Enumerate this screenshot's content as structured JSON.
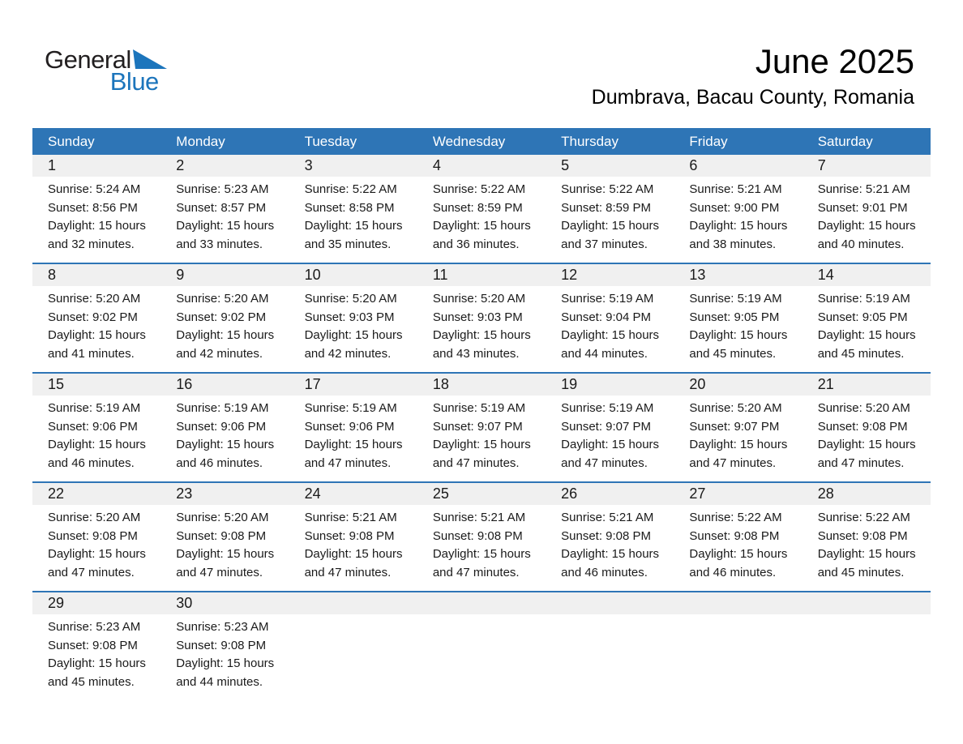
{
  "logo": {
    "general": "General",
    "blue": "Blue"
  },
  "header": {
    "title": "June 2025",
    "subtitle": "Dumbrava, Bacau County, Romania"
  },
  "colors": {
    "header_bg": "#2e75b6",
    "divider": "#2e75b6",
    "band_bg": "#f0f0f0",
    "logo_blue": "#1c75bc",
    "text": "#1a1a1a"
  },
  "weekdays": [
    "Sunday",
    "Monday",
    "Tuesday",
    "Wednesday",
    "Thursday",
    "Friday",
    "Saturday"
  ],
  "weeks": [
    [
      {
        "num": "1",
        "lines": [
          "Sunrise: 5:24 AM",
          "Sunset: 8:56 PM",
          "Daylight: 15 hours",
          "and 32 minutes."
        ]
      },
      {
        "num": "2",
        "lines": [
          "Sunrise: 5:23 AM",
          "Sunset: 8:57 PM",
          "Daylight: 15 hours",
          "and 33 minutes."
        ]
      },
      {
        "num": "3",
        "lines": [
          "Sunrise: 5:22 AM",
          "Sunset: 8:58 PM",
          "Daylight: 15 hours",
          "and 35 minutes."
        ]
      },
      {
        "num": "4",
        "lines": [
          "Sunrise: 5:22 AM",
          "Sunset: 8:59 PM",
          "Daylight: 15 hours",
          "and 36 minutes."
        ]
      },
      {
        "num": "5",
        "lines": [
          "Sunrise: 5:22 AM",
          "Sunset: 8:59 PM",
          "Daylight: 15 hours",
          "and 37 minutes."
        ]
      },
      {
        "num": "6",
        "lines": [
          "Sunrise: 5:21 AM",
          "Sunset: 9:00 PM",
          "Daylight: 15 hours",
          "and 38 minutes."
        ]
      },
      {
        "num": "7",
        "lines": [
          "Sunrise: 5:21 AM",
          "Sunset: 9:01 PM",
          "Daylight: 15 hours",
          "and 40 minutes."
        ]
      }
    ],
    [
      {
        "num": "8",
        "lines": [
          "Sunrise: 5:20 AM",
          "Sunset: 9:02 PM",
          "Daylight: 15 hours",
          "and 41 minutes."
        ]
      },
      {
        "num": "9",
        "lines": [
          "Sunrise: 5:20 AM",
          "Sunset: 9:02 PM",
          "Daylight: 15 hours",
          "and 42 minutes."
        ]
      },
      {
        "num": "10",
        "lines": [
          "Sunrise: 5:20 AM",
          "Sunset: 9:03 PM",
          "Daylight: 15 hours",
          "and 42 minutes."
        ]
      },
      {
        "num": "11",
        "lines": [
          "Sunrise: 5:20 AM",
          "Sunset: 9:03 PM",
          "Daylight: 15 hours",
          "and 43 minutes."
        ]
      },
      {
        "num": "12",
        "lines": [
          "Sunrise: 5:19 AM",
          "Sunset: 9:04 PM",
          "Daylight: 15 hours",
          "and 44 minutes."
        ]
      },
      {
        "num": "13",
        "lines": [
          "Sunrise: 5:19 AM",
          "Sunset: 9:05 PM",
          "Daylight: 15 hours",
          "and 45 minutes."
        ]
      },
      {
        "num": "14",
        "lines": [
          "Sunrise: 5:19 AM",
          "Sunset: 9:05 PM",
          "Daylight: 15 hours",
          "and 45 minutes."
        ]
      }
    ],
    [
      {
        "num": "15",
        "lines": [
          "Sunrise: 5:19 AM",
          "Sunset: 9:06 PM",
          "Daylight: 15 hours",
          "and 46 minutes."
        ]
      },
      {
        "num": "16",
        "lines": [
          "Sunrise: 5:19 AM",
          "Sunset: 9:06 PM",
          "Daylight: 15 hours",
          "and 46 minutes."
        ]
      },
      {
        "num": "17",
        "lines": [
          "Sunrise: 5:19 AM",
          "Sunset: 9:06 PM",
          "Daylight: 15 hours",
          "and 47 minutes."
        ]
      },
      {
        "num": "18",
        "lines": [
          "Sunrise: 5:19 AM",
          "Sunset: 9:07 PM",
          "Daylight: 15 hours",
          "and 47 minutes."
        ]
      },
      {
        "num": "19",
        "lines": [
          "Sunrise: 5:19 AM",
          "Sunset: 9:07 PM",
          "Daylight: 15 hours",
          "and 47 minutes."
        ]
      },
      {
        "num": "20",
        "lines": [
          "Sunrise: 5:20 AM",
          "Sunset: 9:07 PM",
          "Daylight: 15 hours",
          "and 47 minutes."
        ]
      },
      {
        "num": "21",
        "lines": [
          "Sunrise: 5:20 AM",
          "Sunset: 9:08 PM",
          "Daylight: 15 hours",
          "and 47 minutes."
        ]
      }
    ],
    [
      {
        "num": "22",
        "lines": [
          "Sunrise: 5:20 AM",
          "Sunset: 9:08 PM",
          "Daylight: 15 hours",
          "and 47 minutes."
        ]
      },
      {
        "num": "23",
        "lines": [
          "Sunrise: 5:20 AM",
          "Sunset: 9:08 PM",
          "Daylight: 15 hours",
          "and 47 minutes."
        ]
      },
      {
        "num": "24",
        "lines": [
          "Sunrise: 5:21 AM",
          "Sunset: 9:08 PM",
          "Daylight: 15 hours",
          "and 47 minutes."
        ]
      },
      {
        "num": "25",
        "lines": [
          "Sunrise: 5:21 AM",
          "Sunset: 9:08 PM",
          "Daylight: 15 hours",
          "and 47 minutes."
        ]
      },
      {
        "num": "26",
        "lines": [
          "Sunrise: 5:21 AM",
          "Sunset: 9:08 PM",
          "Daylight: 15 hours",
          "and 46 minutes."
        ]
      },
      {
        "num": "27",
        "lines": [
          "Sunrise: 5:22 AM",
          "Sunset: 9:08 PM",
          "Daylight: 15 hours",
          "and 46 minutes."
        ]
      },
      {
        "num": "28",
        "lines": [
          "Sunrise: 5:22 AM",
          "Sunset: 9:08 PM",
          "Daylight: 15 hours",
          "and 45 minutes."
        ]
      }
    ],
    [
      {
        "num": "29",
        "lines": [
          "Sunrise: 5:23 AM",
          "Sunset: 9:08 PM",
          "Daylight: 15 hours",
          "and 45 minutes."
        ]
      },
      {
        "num": "30",
        "lines": [
          "Sunrise: 5:23 AM",
          "Sunset: 9:08 PM",
          "Daylight: 15 hours",
          "and 44 minutes."
        ]
      },
      null,
      null,
      null,
      null,
      null
    ]
  ]
}
